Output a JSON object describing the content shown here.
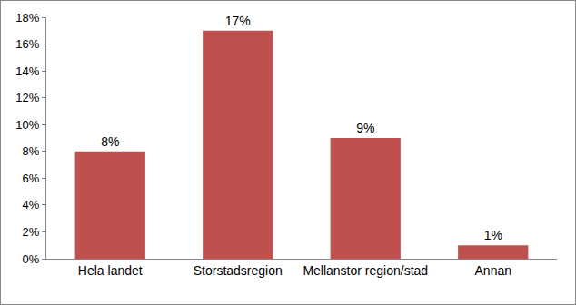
{
  "chart_data": {
    "type": "bar",
    "categories": [
      "Hela landet",
      "Storstadsregion",
      "Mellanstor region/stad",
      "Annan"
    ],
    "values": [
      8,
      17,
      9,
      1
    ],
    "value_labels": [
      "8%",
      "17%",
      "9%",
      "1%"
    ],
    "data_labels": true,
    "color": "#c0504d",
    "ylim": [
      0,
      18
    ],
    "yticks": [
      {
        "value": 0,
        "label": "0%"
      },
      {
        "value": 2,
        "label": "2%"
      },
      {
        "value": 4,
        "label": "4%"
      },
      {
        "value": 6,
        "label": "6%"
      },
      {
        "value": 8,
        "label": "8%"
      },
      {
        "value": 10,
        "label": "10%"
      },
      {
        "value": 12,
        "label": "12%"
      },
      {
        "value": 14,
        "label": "14%"
      },
      {
        "value": 16,
        "label": "16%"
      },
      {
        "value": 18,
        "label": "18%"
      }
    ],
    "grid": false
  }
}
